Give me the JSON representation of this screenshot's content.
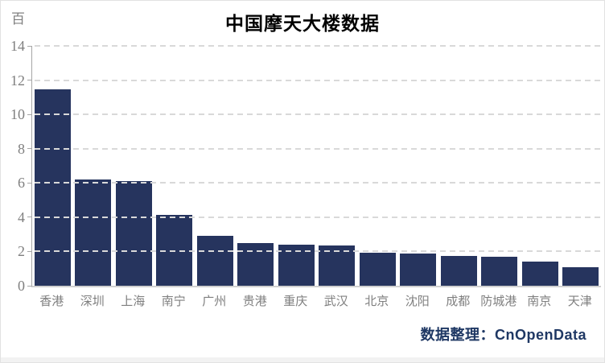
{
  "title": "中国摩天大楼数据",
  "unit_label": "百",
  "attribution": "数据整理：CnOpenData",
  "colors": {
    "bar": "#26345e",
    "title_text": "#000000",
    "attribution_text": "#1f3864",
    "axis_text": "#7f7f7f",
    "gridline": "#d9d9d9",
    "axis_line": "#a6a6a6"
  },
  "chart_data": {
    "type": "bar",
    "title": "中国摩天大楼数据",
    "unit": "百",
    "categories": [
      "香港",
      "深圳",
      "上海",
      "南宁",
      "广州",
      "贵港",
      "重庆",
      "武汉",
      "北京",
      "沈阳",
      "成都",
      "防城港",
      "南京",
      "天津"
    ],
    "values": [
      11.45,
      6.2,
      6.1,
      4.15,
      2.9,
      2.5,
      2.4,
      2.35,
      1.95,
      1.9,
      1.75,
      1.7,
      1.4,
      1.1
    ],
    "xlabel": "",
    "ylabel": "百",
    "ylim": [
      0,
      14
    ],
    "yticks": [
      0,
      2,
      4,
      6,
      8,
      10,
      12,
      14
    ],
    "grid": true,
    "grid_style": "dashed",
    "legend_position": "none",
    "bar_color": "#26345e",
    "source_note": "数据整理：CnOpenData"
  }
}
